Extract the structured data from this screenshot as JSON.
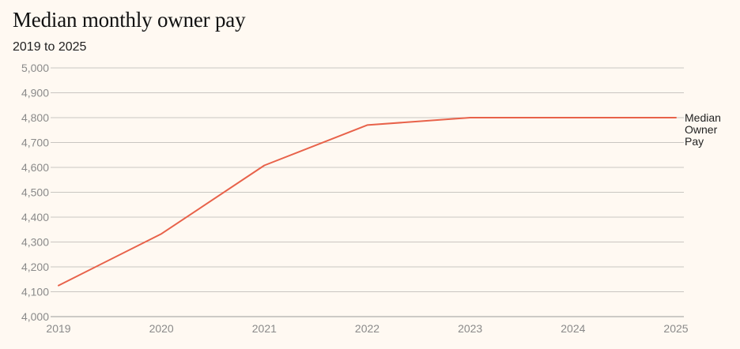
{
  "chart_data": {
    "type": "line",
    "title": "Median monthly owner pay",
    "subtitle": "2019 to 2025",
    "xlabel": "",
    "ylabel": "",
    "x": [
      2019,
      2020,
      2021,
      2022,
      2023,
      2024,
      2025
    ],
    "xticks": [
      "2019",
      "2020",
      "2021",
      "2022",
      "2023",
      "2024",
      "2025"
    ],
    "ylim": [
      4000,
      5000
    ],
    "yticks": [
      "4,000",
      "4,100",
      "4,200",
      "4,300",
      "4,400",
      "4,500",
      "4,600",
      "4,700",
      "4,800",
      "4,900",
      "5,000"
    ],
    "grid": true,
    "series": [
      {
        "name": "Median Owner Pay",
        "label_lines": [
          "Median",
          "Owner",
          "Pay"
        ],
        "color": "#e8624a",
        "values": [
          4125,
          4333,
          4608,
          4770,
          4800,
          4800,
          4800
        ]
      }
    ]
  }
}
